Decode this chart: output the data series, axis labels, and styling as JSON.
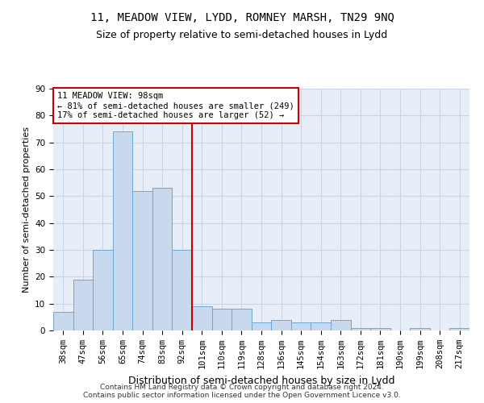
{
  "title": "11, MEADOW VIEW, LYDD, ROMNEY MARSH, TN29 9NQ",
  "subtitle": "Size of property relative to semi-detached houses in Lydd",
  "xlabel": "Distribution of semi-detached houses by size in Lydd",
  "ylabel": "Number of semi-detached properties",
  "categories": [
    "38sqm",
    "47sqm",
    "56sqm",
    "65sqm",
    "74sqm",
    "83sqm",
    "92sqm",
    "101sqm",
    "110sqm",
    "119sqm",
    "128sqm",
    "136sqm",
    "145sqm",
    "154sqm",
    "163sqm",
    "172sqm",
    "181sqm",
    "190sqm",
    "199sqm",
    "208sqm",
    "217sqm"
  ],
  "values": [
    7,
    19,
    30,
    74,
    52,
    53,
    30,
    9,
    8,
    8,
    3,
    4,
    3,
    3,
    4,
    1,
    1,
    0,
    1,
    0,
    1
  ],
  "bar_color": "#c8d9ee",
  "bar_edge_color": "#6aaad4",
  "vline_index": 7,
  "vline_color": "#cc0000",
  "annotation_title": "11 MEADOW VIEW: 98sqm",
  "annotation_line1": "← 81% of semi-detached houses are smaller (249)",
  "annotation_line2": "17% of semi-detached houses are larger (52) →",
  "annotation_box_color": "#ffffff",
  "annotation_box_edge_color": "#cc0000",
  "ylim": [
    0,
    90
  ],
  "yticks": [
    0,
    10,
    20,
    30,
    40,
    50,
    60,
    70,
    80,
    90
  ],
  "grid_color": "#c8d4e8",
  "background_color": "#e8eef8",
  "footer_line1": "Contains HM Land Registry data © Crown copyright and database right 2024.",
  "footer_line2": "Contains public sector information licensed under the Open Government Licence v3.0.",
  "title_fontsize": 10,
  "subtitle_fontsize": 9,
  "footer_fontsize": 6.5,
  "ylabel_fontsize": 8,
  "xlabel_fontsize": 9,
  "tick_fontsize": 7.5,
  "annotation_fontsize": 7.5
}
